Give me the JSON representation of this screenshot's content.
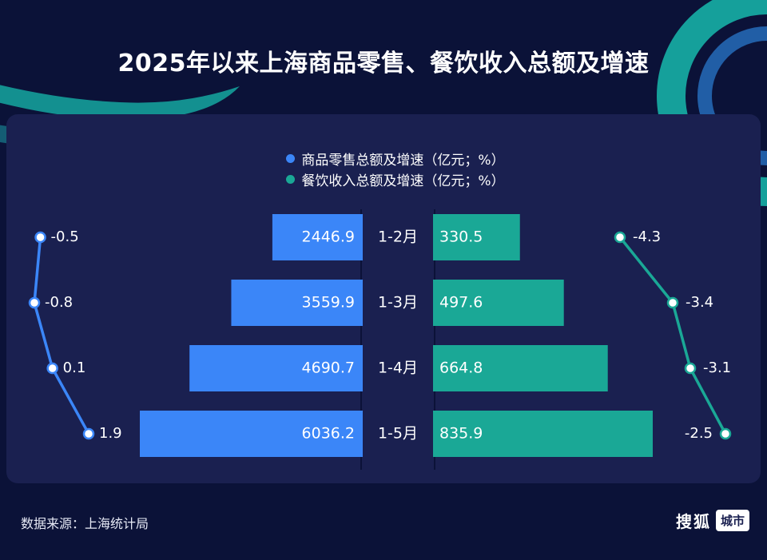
{
  "title": "2025年以来上海商品零售、餐饮收入总额及增速",
  "source": "数据来源：上海统计局",
  "brand": {
    "name": "搜狐",
    "tag": "城市"
  },
  "colors": {
    "retail": "#3b86f8",
    "catering": "#1aa896",
    "background": "#0b1238",
    "panel": "#1a2050"
  },
  "chart_data": {
    "type": "bar",
    "categories": [
      "1-2月",
      "1-3月",
      "1-4月",
      "1-5月"
    ],
    "series": [
      {
        "name": "商品零售总额及增速（亿元；%）",
        "values": [
          2446.9,
          3559.9,
          4690.7,
          6036.2
        ],
        "growth": [
          -0.5,
          -0.8,
          0.1,
          1.9
        ],
        "color": "#3b86f8"
      },
      {
        "name": "餐饮收入总额及增速（亿元；%）",
        "values": [
          330.5,
          497.6,
          664.8,
          835.9
        ],
        "growth": [
          -4.3,
          -3.4,
          -3.1,
          -2.5
        ],
        "color": "#1aa896"
      }
    ],
    "legend_position": "top-center"
  }
}
